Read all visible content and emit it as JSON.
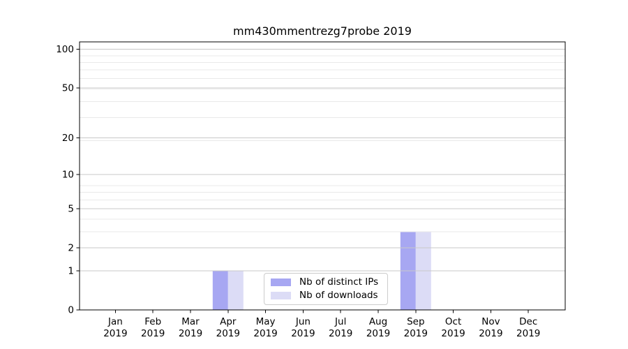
{
  "figure": {
    "background": "#ffffff"
  },
  "chart_data": {
    "type": "bar",
    "title": "mm430mmentrezg7probe 2019",
    "categories": [
      "Jan",
      "Feb",
      "Mar",
      "Apr",
      "May",
      "Jun",
      "Jul",
      "Aug",
      "Sep",
      "Oct",
      "Nov",
      "Dec"
    ],
    "x_tick_second_line": "2019",
    "series": [
      {
        "name": "Nb of distinct IPs",
        "color": "#a7a7f2",
        "values": [
          0,
          0,
          0,
          1,
          0,
          0,
          0,
          0,
          3,
          0,
          0,
          0
        ]
      },
      {
        "name": "Nb of downloads",
        "color": "#dcdcf6",
        "values": [
          0,
          0,
          0,
          1,
          0,
          0,
          0,
          0,
          3,
          0,
          0,
          0
        ]
      }
    ],
    "yscale": "log1p",
    "ylim": [
      0,
      114
    ],
    "yticks": [
      0,
      1,
      2,
      5,
      10,
      20,
      50,
      100
    ],
    "minor_yticks": [
      3,
      4,
      6,
      7,
      8,
      19,
      29,
      39,
      49,
      59,
      69,
      79,
      89
    ],
    "grid": true,
    "legend_position": "lower center",
    "colors": {
      "major_grid": "#c8c8c8",
      "minor_grid": "#e9e9e9",
      "axis": "#000000",
      "text": "#000000"
    }
  }
}
